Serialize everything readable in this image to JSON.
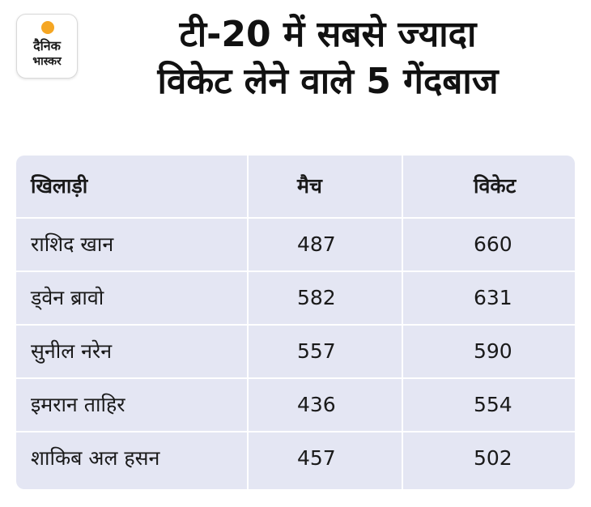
{
  "logo": {
    "line1": "दैनिक",
    "line2": "भास्कर",
    "sun_color": "#f5a623"
  },
  "title": {
    "line1": "टी-20 में सबसे ज्यादा",
    "line2": "विकेट लेने वाले 5 गेंदबाज"
  },
  "chart_data": {
    "type": "table",
    "columns": [
      "खिलाड़ी",
      "मैच",
      "विकेट"
    ],
    "rows": [
      [
        "राशिद खान",
        "487",
        "660"
      ],
      [
        "ड्वेन ब्रावो",
        "582",
        "631"
      ],
      [
        "सुनील नरेन",
        "557",
        "590"
      ],
      [
        "इमरान ताहिर",
        "436",
        "554"
      ],
      [
        "शाकिब अल हसन",
        "457",
        "502"
      ]
    ]
  },
  "colors": {
    "table_background": "#e4e6f3",
    "grid_lines": "#ffffff",
    "text": "#1a1a1a"
  }
}
